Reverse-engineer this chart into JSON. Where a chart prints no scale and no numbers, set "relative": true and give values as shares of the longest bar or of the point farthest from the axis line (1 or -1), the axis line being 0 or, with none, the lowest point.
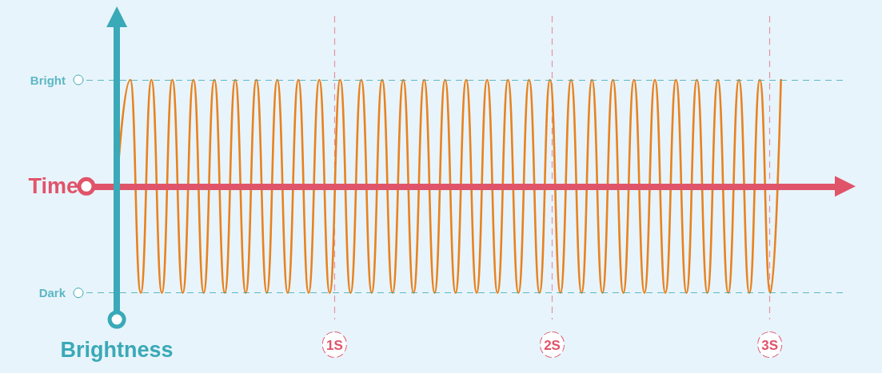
{
  "chart_data": {
    "type": "line",
    "xlabel": "Time",
    "ylabel": "Brightness",
    "x": [
      0,
      0.062,
      0.11,
      0.159,
      0.207,
      0.255,
      0.303,
      0.352,
      0.399,
      0.448,
      0.496,
      0.544,
      0.592,
      0.641,
      0.689,
      0.737,
      0.785,
      0.834,
      0.881,
      0.93,
      0.978,
      1.026,
      1.074,
      1.123,
      1.171,
      1.219,
      1.267,
      1.316,
      1.363,
      1.412,
      1.46,
      1.508,
      1.556,
      1.605,
      1.653,
      1.701,
      1.749,
      1.797,
      1.845,
      1.894,
      1.942,
      1.99,
      2.038,
      2.087,
      2.135,
      2.183,
      2.231,
      2.279,
      2.327,
      2.376,
      2.424,
      2.472,
      2.52,
      2.569,
      2.617,
      2.665,
      2.713,
      2.761,
      2.809,
      2.858,
      2.906,
      2.954,
      3.002,
      3.051
    ],
    "series": [
      {
        "color": "#e8821e",
        "values": [
          0,
          1,
          -1,
          1,
          -1,
          1,
          -1,
          1,
          -1,
          1,
          -1,
          1,
          -1,
          1,
          -1,
          1,
          -1,
          1,
          -1,
          1,
          -1,
          1,
          -1,
          1,
          -1,
          1,
          -1,
          1,
          -1,
          1,
          -1,
          1,
          -1,
          1,
          -1,
          1,
          -1,
          1,
          -1,
          1,
          -1,
          1,
          -1,
          1,
          -1,
          1,
          -1,
          1,
          -1,
          1,
          -1,
          1,
          -1,
          1,
          -1,
          1,
          -1,
          1,
          -1,
          1,
          -1,
          1,
          -1,
          1
        ]
      }
    ],
    "xlim": [
      -0.14,
      3.35
    ],
    "xticks": [
      {
        "value": 1,
        "label": "1S"
      },
      {
        "value": 2,
        "label": "2S"
      },
      {
        "value": 3,
        "label": "3S"
      }
    ],
    "relative": true,
    "ref_lines": [
      {
        "axis": "y",
        "value": 0,
        "color": "#e0546a",
        "line_style": "solid"
      },
      {
        "axis": "x",
        "value": 0,
        "color": "#3aa9b8",
        "line_style": "solid"
      },
      {
        "axis": "y",
        "value": 1,
        "label": "Bright",
        "color": "#3aa9b8",
        "line_style": "dashed"
      },
      {
        "axis": "y",
        "value": -1,
        "label": "Dark",
        "color": "#3aa9b8",
        "line_style": "dashed"
      }
    ],
    "grid": "x",
    "marker": "none"
  }
}
